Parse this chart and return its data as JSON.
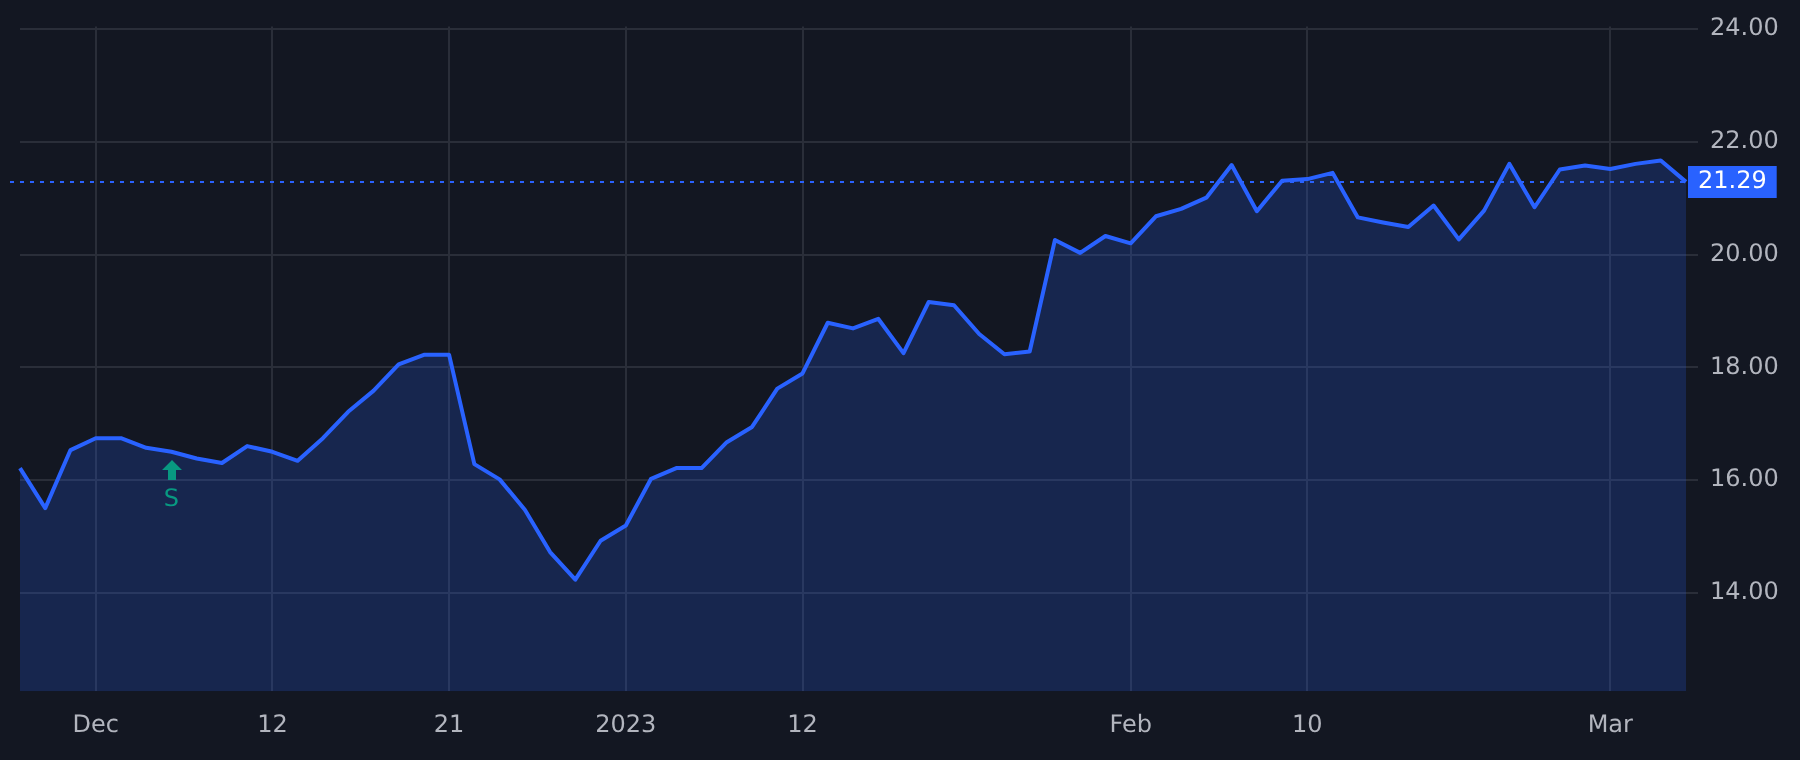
{
  "chart_data": {
    "type": "area",
    "categories": [
      null,
      null,
      null,
      "Dec",
      null,
      null,
      null,
      null,
      null,
      null,
      "12",
      null,
      null,
      null,
      null,
      null,
      null,
      "21",
      null,
      null,
      null,
      null,
      null,
      null,
      "2023",
      null,
      null,
      null,
      null,
      null,
      null,
      "12",
      null,
      null,
      null,
      null,
      null,
      null,
      null,
      null,
      null,
      null,
      null,
      null,
      "Feb",
      null,
      null,
      null,
      null,
      null,
      null,
      "10",
      null,
      null,
      null,
      null,
      null,
      null,
      null,
      null,
      null,
      null,
      null,
      "Mar",
      null,
      null,
      null
    ],
    "series": [
      {
        "color": "#2962ff",
        "values": [
          16.21,
          15.5,
          16.53,
          16.74,
          16.74,
          16.57,
          16.5,
          16.38,
          16.3,
          16.6,
          16.5,
          16.34,
          16.74,
          17.21,
          17.58,
          18.05,
          18.22,
          18.22,
          16.28,
          16.01,
          15.47,
          14.72,
          14.23,
          14.92,
          15.19,
          16.02,
          16.21,
          16.21,
          16.67,
          16.94,
          17.62,
          17.89,
          18.79,
          18.69,
          18.86,
          18.25,
          19.16,
          19.1,
          18.59,
          18.23,
          18.28,
          20.26,
          20.03,
          20.33,
          20.2,
          20.68,
          20.81,
          21.01,
          21.59,
          20.77,
          21.31,
          21.34,
          21.45,
          20.66,
          20.57,
          20.49,
          20.87,
          20.27,
          20.78,
          21.61,
          20.84,
          21.51,
          21.58,
          21.52,
          21.61,
          21.67,
          21.29
        ]
      }
    ],
    "ylim": [
      12.25,
      24.05
    ],
    "yticks": [
      {
        "value": 14,
        "label": "14.00"
      },
      {
        "value": 16,
        "label": "16.00"
      },
      {
        "value": 18,
        "label": "18.00"
      },
      {
        "value": 20,
        "label": "20.00"
      },
      {
        "value": 22,
        "label": "22.00"
      },
      {
        "value": 24,
        "label": "24.00"
      }
    ],
    "ref_lines": [
      {
        "axis": "y",
        "value": 21.29,
        "label": "21.29",
        "color": "#2962ff",
        "line_style": "dotted"
      }
    ],
    "annotations": [
      "S"
    ],
    "grid": true,
    "legend": false
  }
}
